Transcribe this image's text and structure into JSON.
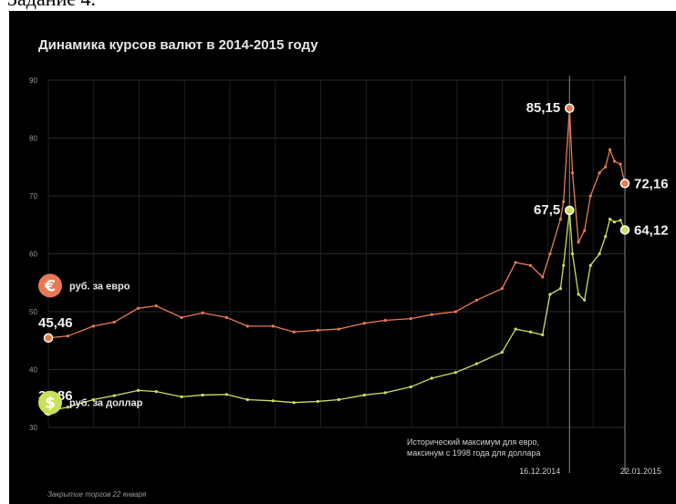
{
  "page_heading": "Задание 4.",
  "chart_data": {
    "type": "line",
    "title": "Динамика курсов валют в 2014-2015 году",
    "xlabel": "",
    "ylabel": "",
    "ylim": [
      30,
      90
    ],
    "yticks": [
      30,
      40,
      50,
      60,
      70,
      80,
      90
    ],
    "x_range": [
      "2014-01-02",
      "2015-01-22"
    ],
    "x_dates": [
      {
        "date": "2014-12-16",
        "label": "16.12.2014"
      },
      {
        "date": "2015-01-22",
        "label": "22.01.2015"
      }
    ],
    "grid": true,
    "legend_placement": "left",
    "series": [
      {
        "name": "руб. за евро",
        "color": "#e87a52",
        "icon": "euro-icon",
        "points": [
          [
            "2014-01-02",
            45.46
          ],
          [
            "2014-01-15",
            45.8
          ],
          [
            "2014-02-01",
            47.5
          ],
          [
            "2014-02-15",
            48.2
          ],
          [
            "2014-03-03",
            50.6
          ],
          [
            "2014-03-15",
            51.0
          ],
          [
            "2014-04-01",
            49.0
          ],
          [
            "2014-04-15",
            49.8
          ],
          [
            "2014-05-01",
            49.0
          ],
          [
            "2014-05-15",
            47.5
          ],
          [
            "2014-06-01",
            47.5
          ],
          [
            "2014-06-15",
            46.5
          ],
          [
            "2014-07-01",
            46.8
          ],
          [
            "2014-07-15",
            47.0
          ],
          [
            "2014-08-01",
            48.0
          ],
          [
            "2014-08-15",
            48.5
          ],
          [
            "2014-09-01",
            48.8
          ],
          [
            "2014-09-15",
            49.5
          ],
          [
            "2014-10-01",
            50.0
          ],
          [
            "2014-10-15",
            52.0
          ],
          [
            "2014-11-01",
            54.0
          ],
          [
            "2014-11-10",
            58.5
          ],
          [
            "2014-11-20",
            58.0
          ],
          [
            "2014-11-28",
            56.0
          ],
          [
            "2014-12-03",
            60.0
          ],
          [
            "2014-12-10",
            66.0
          ],
          [
            "2014-12-12",
            69.0
          ],
          [
            "2014-12-16",
            85.15
          ],
          [
            "2014-12-18",
            74.0
          ],
          [
            "2014-12-22",
            62.0
          ],
          [
            "2014-12-26",
            64.0
          ],
          [
            "2014-12-30",
            70.0
          ],
          [
            "2015-01-05",
            74.0
          ],
          [
            "2015-01-09",
            75.0
          ],
          [
            "2015-01-12",
            78.0
          ],
          [
            "2015-01-15",
            76.0
          ],
          [
            "2015-01-19",
            75.5
          ],
          [
            "2015-01-22",
            72.16
          ]
        ],
        "start_label": "45,46",
        "peak_label": "85,15",
        "end_label": "72,16"
      },
      {
        "name": "руб. за доллар",
        "color": "#c8e05a",
        "icon": "dollar-icon",
        "points": [
          [
            "2014-01-02",
            32.86
          ],
          [
            "2014-01-15",
            33.5
          ],
          [
            "2014-02-01",
            34.8
          ],
          [
            "2014-02-15",
            35.5
          ],
          [
            "2014-03-03",
            36.4
          ],
          [
            "2014-03-15",
            36.2
          ],
          [
            "2014-04-01",
            35.3
          ],
          [
            "2014-04-15",
            35.6
          ],
          [
            "2014-05-01",
            35.7
          ],
          [
            "2014-05-15",
            34.8
          ],
          [
            "2014-06-01",
            34.6
          ],
          [
            "2014-06-15",
            34.3
          ],
          [
            "2014-07-01",
            34.5
          ],
          [
            "2014-07-15",
            34.8
          ],
          [
            "2014-08-01",
            35.6
          ],
          [
            "2014-08-15",
            36.0
          ],
          [
            "2014-09-01",
            37.0
          ],
          [
            "2014-09-15",
            38.5
          ],
          [
            "2014-10-01",
            39.5
          ],
          [
            "2014-10-15",
            41.0
          ],
          [
            "2014-11-01",
            43.0
          ],
          [
            "2014-11-10",
            47.0
          ],
          [
            "2014-11-20",
            46.5
          ],
          [
            "2014-11-28",
            46.0
          ],
          [
            "2014-12-03",
            53.0
          ],
          [
            "2014-12-10",
            54.0
          ],
          [
            "2014-12-12",
            58.0
          ],
          [
            "2014-12-16",
            67.5
          ],
          [
            "2014-12-18",
            60.0
          ],
          [
            "2014-12-22",
            53.0
          ],
          [
            "2014-12-26",
            52.0
          ],
          [
            "2014-12-30",
            58.0
          ],
          [
            "2015-01-05",
            60.0
          ],
          [
            "2015-01-09",
            63.0
          ],
          [
            "2015-01-12",
            66.0
          ],
          [
            "2015-01-15",
            65.5
          ],
          [
            "2015-01-19",
            65.8
          ],
          [
            "2015-01-22",
            64.12
          ]
        ],
        "start_label": "32,86",
        "peak_label": "67,5",
        "end_label": "64,12"
      }
    ],
    "annotation_lines": [
      "Исторический максимум для евро,",
      "максинум с 1998 года для доллара"
    ],
    "footnote": "Закрытие торгов 22 января"
  }
}
